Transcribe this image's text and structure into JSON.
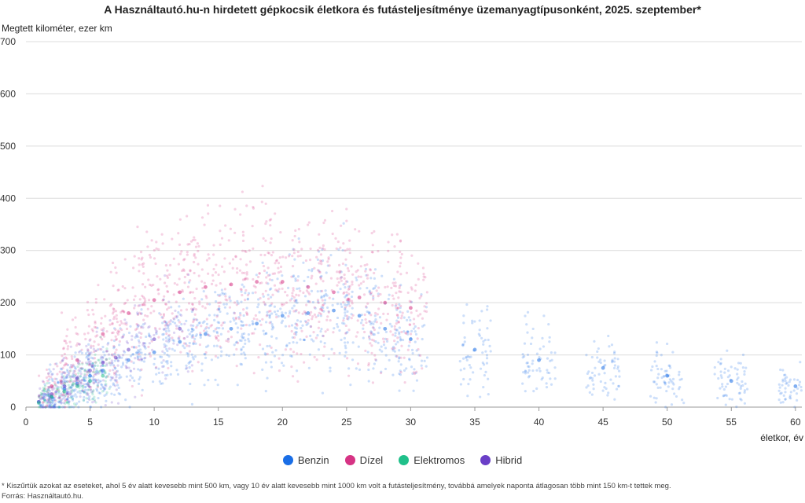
{
  "chart_data": {
    "type": "scatter",
    "title": "A Használtautó.hu-n hirdetett gépkocsik életkora és futásteljesítménye üzemanyagtípusonként, 2025. szeptember*",
    "ylabel": "Megtett kilométer, ezer km",
    "xlabel": "életkor, év",
    "xlim": [
      0,
      60.5
    ],
    "ylim": [
      0,
      700
    ],
    "x_ticks": [
      0,
      5,
      10,
      15,
      20,
      25,
      30,
      35,
      40,
      45,
      50,
      55,
      60
    ],
    "y_ticks": [
      0,
      100,
      200,
      300,
      400,
      500,
      600,
      700
    ],
    "grid": "horizontal",
    "legend_position": "bottom",
    "series": [
      {
        "name": "Benzin",
        "color": "#1a6ee6",
        "points": [
          [
            1,
            10
          ],
          [
            2,
            20
          ],
          [
            3,
            35
          ],
          [
            4,
            45
          ],
          [
            5,
            60
          ],
          [
            6,
            70
          ],
          [
            8,
            90
          ],
          [
            10,
            105
          ],
          [
            12,
            125
          ],
          [
            14,
            140
          ],
          [
            16,
            150
          ],
          [
            18,
            160
          ],
          [
            20,
            175
          ],
          [
            22,
            180
          ],
          [
            24,
            185
          ],
          [
            26,
            175
          ],
          [
            28,
            150
          ],
          [
            30,
            130
          ],
          [
            35,
            110
          ],
          [
            40,
            90
          ],
          [
            45,
            75
          ],
          [
            50,
            60
          ],
          [
            55,
            50
          ],
          [
            60,
            40
          ]
        ]
      },
      {
        "name": "Dízel",
        "color": "#d63384",
        "points": [
          [
            2,
            40
          ],
          [
            4,
            90
          ],
          [
            6,
            140
          ],
          [
            8,
            180
          ],
          [
            10,
            205
          ],
          [
            12,
            220
          ],
          [
            14,
            230
          ],
          [
            16,
            235
          ],
          [
            18,
            240
          ],
          [
            20,
            240
          ],
          [
            22,
            230
          ],
          [
            24,
            220
          ],
          [
            26,
            210
          ],
          [
            28,
            200
          ],
          [
            30,
            190
          ]
        ]
      },
      {
        "name": "Elektromos",
        "color": "#20c08a",
        "points": [
          [
            1,
            8
          ],
          [
            2,
            20
          ],
          [
            3,
            30
          ],
          [
            4,
            40
          ],
          [
            5,
            50
          ],
          [
            6,
            60
          ]
        ]
      },
      {
        "name": "Hibrid",
        "color": "#6a3fc7",
        "points": [
          [
            1,
            10
          ],
          [
            2,
            25
          ],
          [
            3,
            40
          ],
          [
            4,
            55
          ],
          [
            5,
            70
          ],
          [
            6,
            85
          ],
          [
            7,
            95
          ],
          [
            8,
            110
          ],
          [
            10,
            130
          ],
          [
            12,
            150
          ]
        ]
      }
    ]
  },
  "footnote": "* Kiszűrtük azokat az eseteket, ahol 5 év alatt kevesebb mint 500 km, vagy 10 év alatt kevesebb mint 1000 km volt a futásteljesítmény, továbbá amelyek naponta átlagosan több mint 150 km-t tettek meg.",
  "source": "Forrás: Használtautó.hu."
}
